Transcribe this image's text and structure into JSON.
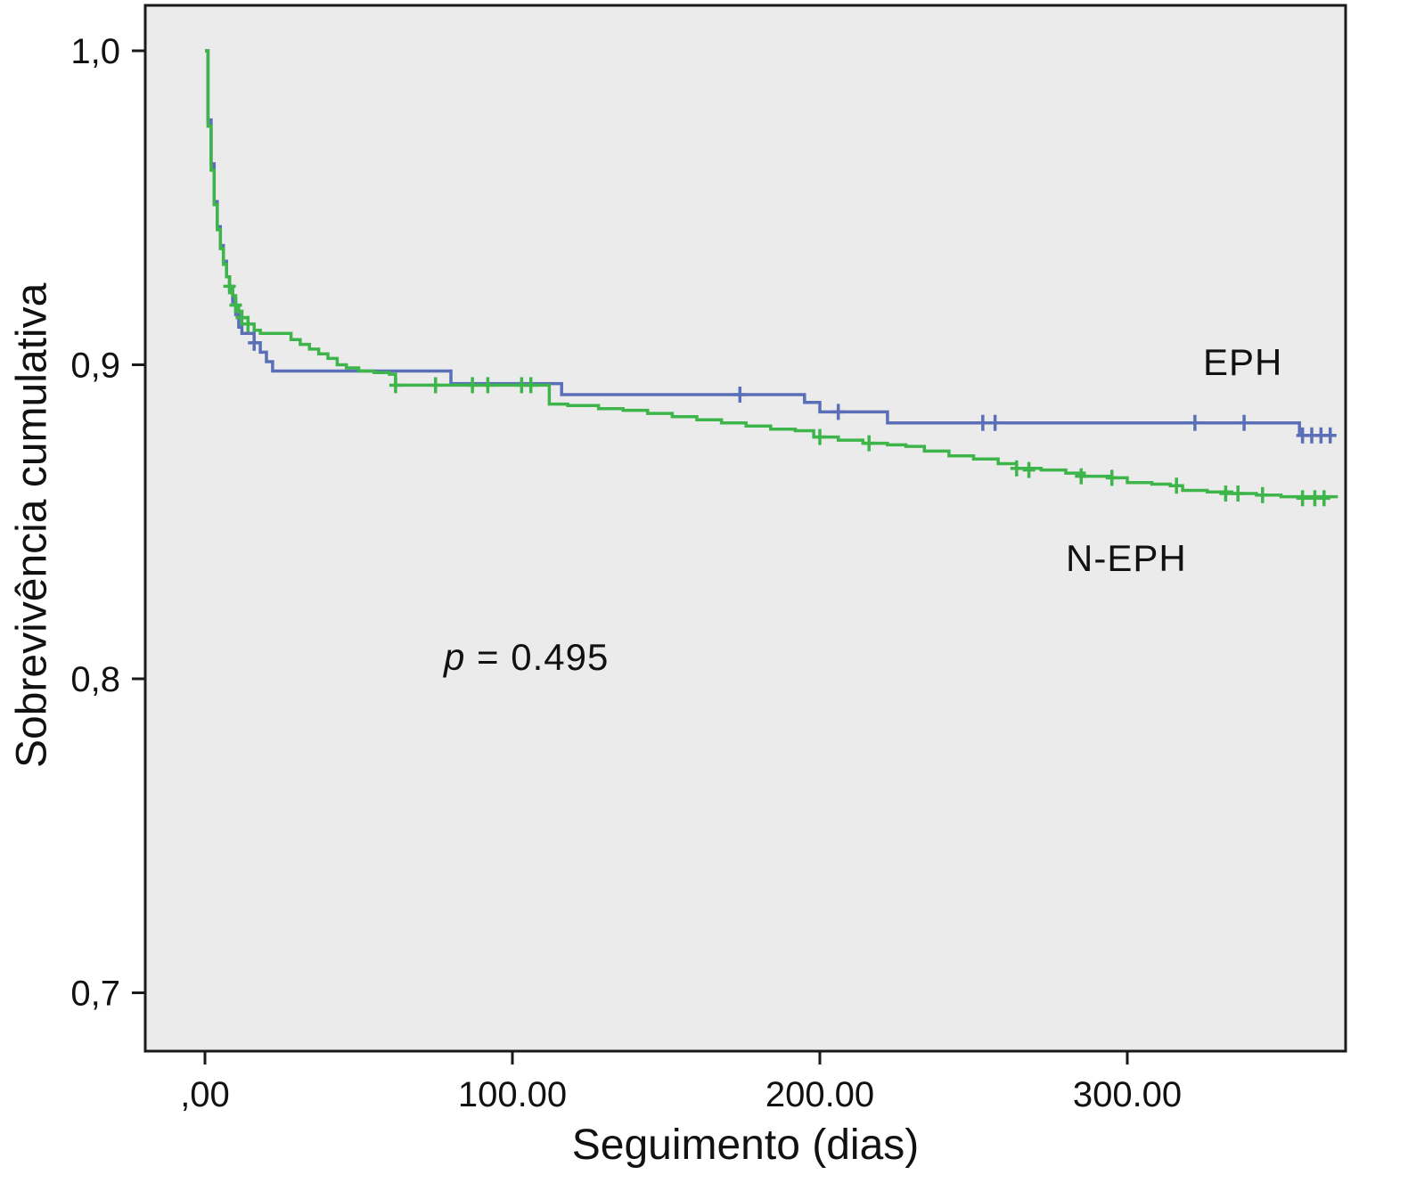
{
  "figure": {
    "background": "#ffffff",
    "plot_background": "#ebebeb",
    "border_color": "#1a1a1a",
    "tick_color": "#1a1a1a"
  },
  "chart_data": {
    "type": "line",
    "subtype": "kaplan-meier-step-survival",
    "title": "",
    "xlabel": "Seguimento (dias)",
    "ylabel": "Sobrevivência cumulativa",
    "xlim": [
      0,
      370
    ],
    "ylim": [
      0.68,
      1.0
    ],
    "grid": false,
    "legend_position": "inline-labels",
    "x_ticks": [
      {
        "value": 0,
        "label": ",00"
      },
      {
        "value": 100,
        "label": "100.00"
      },
      {
        "value": 200,
        "label": "200.00"
      },
      {
        "value": 300,
        "label": "300.00"
      }
    ],
    "y_ticks": [
      {
        "value": 1.0,
        "label": "1,0"
      },
      {
        "value": 0.9,
        "label": "0,9"
      },
      {
        "value": 0.8,
        "label": "0,8"
      },
      {
        "value": 0.7,
        "label": "0,7"
      }
    ],
    "annotations": {
      "p_stat": {
        "symbol": "p",
        "rest": " = 0.495"
      }
    },
    "series": [
      {
        "name": "EPH",
        "color": "#5b6fb8",
        "steps": [
          [
            0,
            1.0
          ],
          [
            1,
            0.978
          ],
          [
            2,
            0.964
          ],
          [
            3,
            0.952
          ],
          [
            4,
            0.944
          ],
          [
            5,
            0.938
          ],
          [
            6,
            0.933
          ],
          [
            7,
            0.928
          ],
          [
            8,
            0.924
          ],
          [
            9,
            0.92
          ],
          [
            10,
            0.916
          ],
          [
            11,
            0.912
          ],
          [
            12,
            0.91
          ],
          [
            16,
            0.907
          ],
          [
            18,
            0.904
          ],
          [
            20,
            0.901
          ],
          [
            22,
            0.898
          ],
          [
            76,
            0.898
          ],
          [
            80,
            0.894
          ],
          [
            112,
            0.894
          ],
          [
            116,
            0.8905
          ],
          [
            190,
            0.8905
          ],
          [
            195,
            0.888
          ],
          [
            200,
            0.885
          ],
          [
            220,
            0.885
          ],
          [
            222,
            0.8815
          ],
          [
            353,
            0.8815
          ],
          [
            356,
            0.8775
          ],
          [
            368,
            0.8775
          ]
        ],
        "censors": [
          [
            16,
            0.907
          ],
          [
            174,
            0.8905
          ],
          [
            206,
            0.885
          ],
          [
            253,
            0.8815
          ],
          [
            257,
            0.8815
          ],
          [
            322,
            0.8815
          ],
          [
            338,
            0.8815
          ],
          [
            357,
            0.8775
          ],
          [
            360,
            0.8775
          ],
          [
            363,
            0.8775
          ],
          [
            366,
            0.8775
          ]
        ]
      },
      {
        "name": "N-EPH",
        "color": "#3db54a",
        "steps": [
          [
            0,
            1.0
          ],
          [
            1,
            0.976
          ],
          [
            2,
            0.962
          ],
          [
            3,
            0.951
          ],
          [
            4,
            0.943
          ],
          [
            5,
            0.937
          ],
          [
            6,
            0.932
          ],
          [
            7,
            0.928
          ],
          [
            8,
            0.925
          ],
          [
            9,
            0.922
          ],
          [
            10,
            0.919
          ],
          [
            11,
            0.917
          ],
          [
            12,
            0.915
          ],
          [
            14,
            0.913
          ],
          [
            16,
            0.911
          ],
          [
            18,
            0.91
          ],
          [
            28,
            0.908
          ],
          [
            31,
            0.9065
          ],
          [
            34,
            0.905
          ],
          [
            37,
            0.9035
          ],
          [
            40,
            0.902
          ],
          [
            43,
            0.9
          ],
          [
            46,
            0.899
          ],
          [
            50,
            0.898
          ],
          [
            55,
            0.8975
          ],
          [
            60,
            0.897
          ],
          [
            62,
            0.8935
          ],
          [
            108,
            0.8935
          ],
          [
            112,
            0.8875
          ],
          [
            118,
            0.887
          ],
          [
            128,
            0.886
          ],
          [
            136,
            0.8855
          ],
          [
            144,
            0.8845
          ],
          [
            152,
            0.8835
          ],
          [
            160,
            0.8825
          ],
          [
            168,
            0.8815
          ],
          [
            176,
            0.8805
          ],
          [
            184,
            0.8795
          ],
          [
            192,
            0.879
          ],
          [
            198,
            0.877
          ],
          [
            206,
            0.876
          ],
          [
            214,
            0.875
          ],
          [
            222,
            0.8745
          ],
          [
            228,
            0.874
          ],
          [
            234,
            0.8725
          ],
          [
            242,
            0.871
          ],
          [
            250,
            0.87
          ],
          [
            258,
            0.8685
          ],
          [
            264,
            0.867
          ],
          [
            272,
            0.8665
          ],
          [
            280,
            0.8655
          ],
          [
            286,
            0.8645
          ],
          [
            294,
            0.864
          ],
          [
            300,
            0.8625
          ],
          [
            308,
            0.862
          ],
          [
            314,
            0.8615
          ],
          [
            318,
            0.86
          ],
          [
            326,
            0.8595
          ],
          [
            334,
            0.859
          ],
          [
            342,
            0.8585
          ],
          [
            350,
            0.858
          ],
          [
            368,
            0.8575
          ]
        ],
        "censors": [
          [
            8,
            0.925
          ],
          [
            10,
            0.919
          ],
          [
            12,
            0.915
          ],
          [
            14,
            0.913
          ],
          [
            62,
            0.8935
          ],
          [
            75,
            0.8935
          ],
          [
            87,
            0.8935
          ],
          [
            92,
            0.8935
          ],
          [
            103,
            0.8935
          ],
          [
            106,
            0.8935
          ],
          [
            200,
            0.877
          ],
          [
            216,
            0.875
          ],
          [
            264,
            0.867
          ],
          [
            268,
            0.8665
          ],
          [
            285,
            0.8645
          ],
          [
            295,
            0.864
          ],
          [
            316,
            0.8615
          ],
          [
            332,
            0.859
          ],
          [
            336,
            0.859
          ],
          [
            344,
            0.8585
          ],
          [
            357,
            0.8575
          ],
          [
            361,
            0.8575
          ],
          [
            364,
            0.8575
          ]
        ]
      }
    ]
  }
}
